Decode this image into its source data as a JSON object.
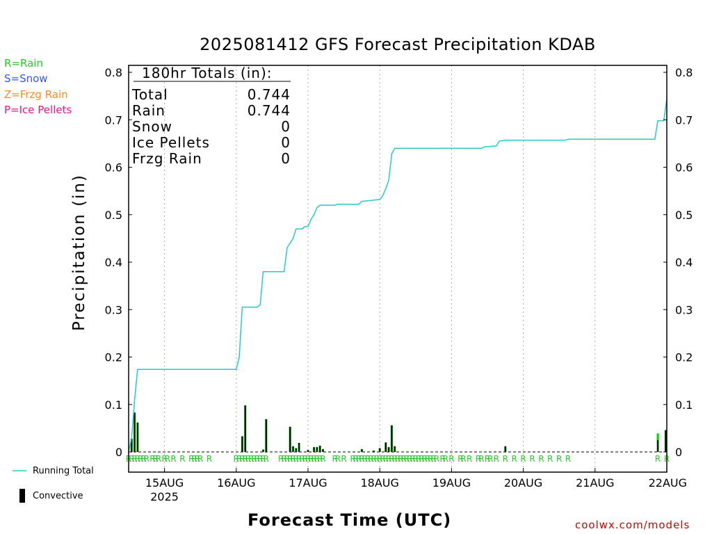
{
  "title": "2025081412 GFS Forecast Precipitation KDAB",
  "key": [
    {
      "text": "R=Rain",
      "color": "#22cc22"
    },
    {
      "text": "S=Snow",
      "color": "#3355ff"
    },
    {
      "text": "Z=Frzg Rain",
      "color": "#ff8822"
    },
    {
      "text": "P=Ice Pellets",
      "color": "#ee1188"
    }
  ],
  "totals": {
    "header": "180hr Totals (in):",
    "rows": [
      {
        "label": "Total",
        "value": "0.744"
      },
      {
        "label": "Rain",
        "value": "0.744"
      },
      {
        "label": "Snow",
        "value": "0"
      },
      {
        "label": "Ice Pellets",
        "value": "0"
      },
      {
        "label": "Frzg Rain",
        "value": "0"
      }
    ]
  },
  "legend": {
    "running_total": "Running Total",
    "convective": "Convective"
  },
  "xlabel": "Forecast Time (UTC)",
  "ylabel": "Precipitation (in)",
  "credit": "coolwx.com/models",
  "colors": {
    "running_total": "#22cccc",
    "precip_bar": "#00dd00",
    "convective_bar": "#000000",
    "rain_marker": "#22cc22",
    "gridline": "#aaaaaa"
  },
  "chart_data": {
    "type": "bar",
    "ylabel": "Precipitation (in)",
    "xlabel": "Forecast Time (UTC)",
    "ylim": [
      0,
      0.82
    ],
    "xlim_hours_from_init": [
      0,
      180
    ],
    "init": "2025-08-14 12Z",
    "y_ticks": [
      "0",
      "0.1",
      "0.2",
      "0.3",
      "0.4",
      "0.5",
      "0.6",
      "0.7",
      "0.8"
    ],
    "x_ticks": [
      {
        "hour": 12,
        "label": "15AUG",
        "sublabel": "2025"
      },
      {
        "hour": 36,
        "label": "16AUG"
      },
      {
        "hour": 60,
        "label": "17AUG"
      },
      {
        "hour": 84,
        "label": "18AUG"
      },
      {
        "hour": 108,
        "label": "19AUG"
      },
      {
        "hour": 132,
        "label": "20AUG"
      },
      {
        "hour": 156,
        "label": "21AUG"
      },
      {
        "hour": 180,
        "label": "22AUG"
      }
    ],
    "grid": "vertical dotted",
    "bars": [
      {
        "hour": 1,
        "total": 0.028,
        "convective": 0.028
      },
      {
        "hour": 2,
        "total": 0.083,
        "convective": 0.083
      },
      {
        "hour": 3,
        "total": 0.062,
        "convective": 0.062
      },
      {
        "hour": 38,
        "total": 0.033,
        "convective": 0.033
      },
      {
        "hour": 39,
        "total": 0.098,
        "convective": 0.098
      },
      {
        "hour": 45,
        "total": 0.005,
        "convective": 0.005
      },
      {
        "hour": 46,
        "total": 0.069,
        "convective": 0.069
      },
      {
        "hour": 54,
        "total": 0.053,
        "convective": 0.053
      },
      {
        "hour": 55,
        "total": 0.012,
        "convective": 0.012
      },
      {
        "hour": 56,
        "total": 0.008,
        "convective": 0.008
      },
      {
        "hour": 57,
        "total": 0.019,
        "convective": 0.019
      },
      {
        "hour": 60,
        "total": 0.004,
        "convective": 0.004
      },
      {
        "hour": 62,
        "total": 0.01,
        "convective": 0.01
      },
      {
        "hour": 63,
        "total": 0.01,
        "convective": 0.01
      },
      {
        "hour": 64,
        "total": 0.013,
        "convective": 0.013
      },
      {
        "hour": 65,
        "total": 0.006,
        "convective": 0.006
      },
      {
        "hour": 78,
        "total": 0.006,
        "convective": 0.006
      },
      {
        "hour": 82,
        "total": 0.003,
        "convective": 0.003
      },
      {
        "hour": 84,
        "total": 0.008,
        "convective": 0.008
      },
      {
        "hour": 86,
        "total": 0.02,
        "convective": 0.02
      },
      {
        "hour": 87,
        "total": 0.01,
        "convective": 0.01
      },
      {
        "hour": 88,
        "total": 0.056,
        "convective": 0.056
      },
      {
        "hour": 89,
        "total": 0.012,
        "convective": 0.012
      },
      {
        "hour": 126,
        "total": 0.012,
        "convective": 0.012
      },
      {
        "hour": 177,
        "total": 0.039,
        "convective": 0.025
      },
      {
        "hour": 180,
        "total": 0.046,
        "convective": 0.046
      }
    ],
    "running_total": {
      "name": "Running Total",
      "points": [
        [
          0,
          0
        ],
        [
          1,
          0.03
        ],
        [
          2,
          0.11
        ],
        [
          3,
          0.174
        ],
        [
          36,
          0.174
        ],
        [
          37,
          0.2
        ],
        [
          38,
          0.305
        ],
        [
          43,
          0.305
        ],
        [
          44,
          0.31
        ],
        [
          45,
          0.38
        ],
        [
          52,
          0.38
        ],
        [
          53,
          0.43
        ],
        [
          54,
          0.44
        ],
        [
          55,
          0.45
        ],
        [
          56,
          0.47
        ],
        [
          58,
          0.47
        ],
        [
          59,
          0.475
        ],
        [
          60,
          0.475
        ],
        [
          61,
          0.49
        ],
        [
          62,
          0.5
        ],
        [
          63,
          0.515
        ],
        [
          64,
          0.52
        ],
        [
          69,
          0.52
        ],
        [
          70,
          0.522
        ],
        [
          77,
          0.522
        ],
        [
          78,
          0.528
        ],
        [
          84,
          0.532
        ],
        [
          85,
          0.54
        ],
        [
          86,
          0.555
        ],
        [
          87,
          0.572
        ],
        [
          88,
          0.628
        ],
        [
          89,
          0.64
        ],
        [
          118,
          0.64
        ],
        [
          119,
          0.643
        ],
        [
          123,
          0.645
        ],
        [
          124,
          0.655
        ],
        [
          126,
          0.657
        ],
        [
          146,
          0.657
        ],
        [
          147,
          0.659
        ],
        [
          176,
          0.659
        ],
        [
          177,
          0.698
        ],
        [
          179,
          0.698
        ],
        [
          180,
          0.744
        ]
      ]
    },
    "precip_type_markers": {
      "symbol": "R",
      "hours": [
        0,
        1,
        2,
        3,
        4,
        5,
        6,
        8,
        9,
        10,
        12,
        13,
        15,
        18,
        21,
        22,
        23,
        24,
        27,
        36,
        37,
        38,
        39,
        40,
        41,
        42,
        43,
        44,
        45,
        46,
        51,
        52,
        53,
        54,
        55,
        56,
        57,
        58,
        59,
        60,
        61,
        62,
        63,
        64,
        65,
        69,
        70,
        72,
        75,
        76,
        77,
        78,
        79,
        80,
        81,
        82,
        83,
        84,
        85,
        86,
        87,
        88,
        89,
        90,
        91,
        92,
        93,
        94,
        95,
        96,
        97,
        98,
        99,
        100,
        101,
        102,
        103,
        105,
        106,
        108,
        111,
        112,
        114,
        117,
        118,
        120,
        121,
        123,
        126,
        129,
        132,
        135,
        138,
        141,
        144,
        147,
        177,
        180
      ]
    }
  }
}
